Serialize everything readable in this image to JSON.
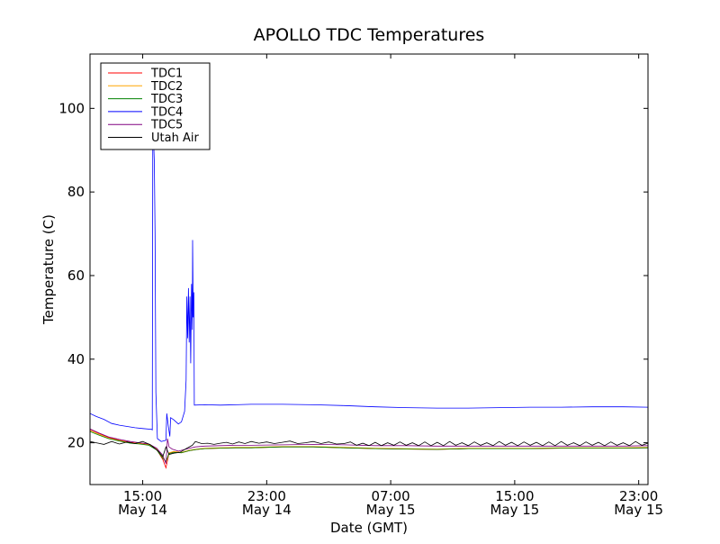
{
  "chart_data": {
    "type": "line",
    "title": "APOLLO TDC Temperatures",
    "xlabel": "Date (GMT)",
    "ylabel": "Temperature (C)",
    "x_unit": "hours since May 14 00:00 GMT",
    "xlim": [
      11.6,
      47.6
    ],
    "ylim": [
      10,
      113
    ],
    "grid": false,
    "legend_position": "top-left",
    "y_ticks": [
      20,
      40,
      60,
      80,
      100
    ],
    "x_ticks": [
      {
        "value": 15,
        "line1": "15:00",
        "line2": "May 14"
      },
      {
        "value": 23,
        "line1": "23:00",
        "line2": "May 14"
      },
      {
        "value": 31,
        "line1": "07:00",
        "line2": "May 15"
      },
      {
        "value": 39,
        "line1": "15:00",
        "line2": "May 15"
      },
      {
        "value": 47,
        "line1": "23:00",
        "line2": "May 15"
      }
    ],
    "series": [
      {
        "name": "TDC1",
        "color": "#ff0000",
        "points": [
          [
            11.6,
            23.2
          ],
          [
            12.2,
            22.2
          ],
          [
            12.8,
            21.3
          ],
          [
            13.5,
            20.6
          ],
          [
            14.2,
            20.1
          ],
          [
            14.8,
            19.9
          ],
          [
            15.4,
            19.6
          ],
          [
            15.9,
            18.4
          ],
          [
            16.3,
            16.0
          ],
          [
            16.5,
            14.0
          ],
          [
            16.7,
            17.5
          ],
          [
            17.0,
            17.8
          ],
          [
            17.5,
            17.6
          ],
          [
            18.0,
            18.1
          ],
          [
            18.5,
            18.4
          ],
          [
            19.0,
            18.6
          ],
          [
            20.0,
            18.7
          ],
          [
            21.0,
            18.8
          ],
          [
            22.0,
            18.8
          ],
          [
            24.0,
            19.0
          ],
          [
            26.0,
            19.0
          ],
          [
            28.0,
            18.8
          ],
          [
            30.0,
            18.6
          ],
          [
            32.0,
            18.5
          ],
          [
            34.0,
            18.4
          ],
          [
            36.0,
            18.6
          ],
          [
            38.0,
            18.6
          ],
          [
            40.0,
            18.6
          ],
          [
            42.0,
            18.7
          ],
          [
            44.0,
            18.7
          ],
          [
            46.0,
            18.7
          ],
          [
            47.6,
            18.8
          ]
        ]
      },
      {
        "name": "TDC2",
        "color": "#ffa500",
        "points": [
          [
            11.6,
            22.9
          ],
          [
            12.2,
            22.0
          ],
          [
            12.8,
            21.1
          ],
          [
            13.5,
            20.5
          ],
          [
            14.2,
            20.0
          ],
          [
            14.8,
            19.8
          ],
          [
            15.4,
            19.5
          ],
          [
            15.9,
            18.5
          ],
          [
            16.3,
            16.5
          ],
          [
            16.5,
            15.2
          ],
          [
            16.7,
            17.6
          ],
          [
            17.0,
            17.9
          ],
          [
            17.5,
            17.7
          ],
          [
            18.0,
            18.2
          ],
          [
            18.5,
            18.5
          ],
          [
            19.0,
            18.7
          ],
          [
            20.0,
            18.8
          ],
          [
            21.0,
            18.9
          ],
          [
            22.0,
            18.9
          ],
          [
            24.0,
            19.1
          ],
          [
            26.0,
            19.1
          ],
          [
            28.0,
            18.9
          ],
          [
            30.0,
            18.7
          ],
          [
            32.0,
            18.6
          ],
          [
            34.0,
            18.5
          ],
          [
            36.0,
            18.7
          ],
          [
            38.0,
            18.7
          ],
          [
            40.0,
            18.7
          ],
          [
            42.0,
            18.8
          ],
          [
            44.0,
            18.8
          ],
          [
            46.0,
            18.8
          ],
          [
            47.6,
            18.9
          ]
        ]
      },
      {
        "name": "TDC3",
        "color": "#008000",
        "points": [
          [
            11.6,
            22.7
          ],
          [
            12.2,
            21.8
          ],
          [
            12.8,
            21.0
          ],
          [
            13.5,
            20.4
          ],
          [
            14.2,
            19.9
          ],
          [
            14.8,
            19.7
          ],
          [
            15.4,
            19.4
          ],
          [
            15.9,
            18.3
          ],
          [
            16.3,
            16.3
          ],
          [
            16.5,
            15.5
          ],
          [
            16.7,
            17.4
          ],
          [
            17.0,
            17.7
          ],
          [
            17.5,
            17.6
          ],
          [
            18.0,
            18.1
          ],
          [
            18.5,
            18.4
          ],
          [
            19.0,
            18.6
          ],
          [
            20.0,
            18.7
          ],
          [
            21.0,
            18.8
          ],
          [
            22.0,
            18.8
          ],
          [
            24.0,
            19.0
          ],
          [
            26.0,
            19.0
          ],
          [
            28.0,
            18.8
          ],
          [
            30.0,
            18.6
          ],
          [
            32.0,
            18.5
          ],
          [
            34.0,
            18.4
          ],
          [
            36.0,
            18.6
          ],
          [
            38.0,
            18.6
          ],
          [
            40.0,
            18.6
          ],
          [
            42.0,
            18.7
          ],
          [
            44.0,
            18.7
          ],
          [
            46.0,
            18.7
          ],
          [
            47.6,
            18.8
          ]
        ]
      },
      {
        "name": "TDC4",
        "color": "#0000ff",
        "points": [
          [
            11.6,
            27.0
          ],
          [
            12.0,
            26.3
          ],
          [
            12.5,
            25.6
          ],
          [
            13.0,
            24.6
          ],
          [
            13.5,
            24.2
          ],
          [
            14.0,
            23.9
          ],
          [
            14.5,
            23.6
          ],
          [
            15.0,
            23.4
          ],
          [
            15.6,
            23.2
          ],
          [
            15.62,
            23.0
          ],
          [
            15.65,
            98.0
          ],
          [
            15.75,
            87.0
          ],
          [
            15.8,
            70.0
          ],
          [
            15.85,
            32.0
          ],
          [
            15.95,
            21.0
          ],
          [
            16.2,
            20.3
          ],
          [
            16.5,
            20.6
          ],
          [
            16.55,
            27.0
          ],
          [
            16.65,
            24.0
          ],
          [
            16.75,
            21.5
          ],
          [
            16.8,
            26.0
          ],
          [
            17.0,
            25.5
          ],
          [
            17.3,
            24.5
          ],
          [
            17.5,
            25.0
          ],
          [
            17.7,
            27.5
          ],
          [
            17.8,
            35.0
          ],
          [
            17.85,
            55.0
          ],
          [
            17.9,
            45.0
          ],
          [
            17.95,
            57.0
          ],
          [
            18.0,
            44.0
          ],
          [
            18.05,
            55.0
          ],
          [
            18.1,
            39.0
          ],
          [
            18.15,
            58.0
          ],
          [
            18.2,
            47.0
          ],
          [
            18.22,
            68.5
          ],
          [
            18.26,
            50.0
          ],
          [
            18.3,
            56.0
          ],
          [
            18.33,
            29.0
          ],
          [
            19.0,
            29.1
          ],
          [
            20.0,
            29.0
          ],
          [
            21.0,
            29.1
          ],
          [
            22.0,
            29.2
          ],
          [
            24.0,
            29.2
          ],
          [
            26.0,
            29.1
          ],
          [
            28.0,
            28.9
          ],
          [
            30.0,
            28.6
          ],
          [
            32.0,
            28.4
          ],
          [
            34.0,
            28.3
          ],
          [
            36.0,
            28.3
          ],
          [
            38.0,
            28.4
          ],
          [
            40.0,
            28.5
          ],
          [
            42.0,
            28.5
          ],
          [
            44.0,
            28.6
          ],
          [
            46.0,
            28.6
          ],
          [
            47.6,
            28.5
          ]
        ]
      },
      {
        "name": "TDC5",
        "color": "#800080",
        "points": [
          [
            11.6,
            23.3
          ],
          [
            12.2,
            22.3
          ],
          [
            12.8,
            21.4
          ],
          [
            13.5,
            20.8
          ],
          [
            14.2,
            20.3
          ],
          [
            14.8,
            20.0
          ],
          [
            15.4,
            19.7
          ],
          [
            15.9,
            18.7
          ],
          [
            16.3,
            17.0
          ],
          [
            16.5,
            15.0
          ],
          [
            16.6,
            21.0
          ],
          [
            16.7,
            19.0
          ],
          [
            16.9,
            18.5
          ],
          [
            17.3,
            18.0
          ],
          [
            17.8,
            18.5
          ],
          [
            18.4,
            19.0
          ],
          [
            19.0,
            19.2
          ],
          [
            20.0,
            19.3
          ],
          [
            21.0,
            19.4
          ],
          [
            22.0,
            19.4
          ],
          [
            24.0,
            19.5
          ],
          [
            26.0,
            19.6
          ],
          [
            28.0,
            19.5
          ],
          [
            30.0,
            19.3
          ],
          [
            32.0,
            19.3
          ],
          [
            34.0,
            19.2
          ],
          [
            36.0,
            19.2
          ],
          [
            38.0,
            19.2
          ],
          [
            40.0,
            19.2
          ],
          [
            42.0,
            19.2
          ],
          [
            44.0,
            19.2
          ],
          [
            46.0,
            19.2
          ],
          [
            47.6,
            19.3
          ]
        ]
      },
      {
        "name": "Utah Air",
        "color": "#000000",
        "points": [
          [
            11.6,
            20.3
          ],
          [
            12.0,
            20.0
          ],
          [
            12.5,
            19.6
          ],
          [
            13.0,
            20.3
          ],
          [
            13.5,
            19.7
          ],
          [
            14.0,
            20.2
          ],
          [
            14.5,
            19.8
          ],
          [
            15.0,
            20.3
          ],
          [
            15.5,
            19.5
          ],
          [
            16.0,
            18.0
          ],
          [
            16.3,
            16.7
          ],
          [
            16.5,
            19.0
          ],
          [
            16.7,
            17.2
          ],
          [
            17.0,
            17.5
          ],
          [
            17.4,
            17.7
          ],
          [
            17.8,
            18.6
          ],
          [
            18.2,
            19.4
          ],
          [
            18.4,
            20.3
          ],
          [
            18.8,
            19.8
          ],
          [
            19.2,
            19.9
          ],
          [
            19.6,
            19.6
          ],
          [
            20.0,
            19.9
          ],
          [
            20.4,
            20.1
          ],
          [
            20.8,
            19.7
          ],
          [
            21.2,
            20.2
          ],
          [
            21.6,
            19.8
          ],
          [
            22.0,
            20.3
          ],
          [
            22.5,
            19.9
          ],
          [
            23.0,
            20.2
          ],
          [
            23.5,
            19.8
          ],
          [
            24.0,
            20.1
          ],
          [
            24.5,
            20.4
          ],
          [
            25.0,
            19.8
          ],
          [
            25.5,
            20.0
          ],
          [
            26.0,
            20.3
          ],
          [
            26.5,
            19.8
          ],
          [
            27.0,
            20.2
          ],
          [
            27.5,
            19.7
          ],
          [
            28.0,
            19.8
          ],
          [
            28.4,
            20.2
          ],
          [
            28.8,
            19.4
          ],
          [
            29.2,
            19.9
          ],
          [
            29.6,
            19.3
          ],
          [
            30.0,
            20.1
          ],
          [
            30.4,
            19.3
          ],
          [
            30.8,
            20.0
          ],
          [
            31.2,
            19.4
          ],
          [
            31.6,
            20.2
          ],
          [
            32.0,
            19.4
          ],
          [
            32.4,
            20.0
          ],
          [
            32.8,
            19.3
          ],
          [
            33.2,
            20.2
          ],
          [
            33.6,
            19.3
          ],
          [
            34.0,
            20.1
          ],
          [
            34.4,
            19.3
          ],
          [
            34.8,
            20.3
          ],
          [
            35.2,
            19.4
          ],
          [
            35.6,
            20.0
          ],
          [
            36.0,
            19.3
          ],
          [
            36.4,
            20.2
          ],
          [
            36.8,
            19.4
          ],
          [
            37.2,
            20.0
          ],
          [
            37.6,
            19.3
          ],
          [
            38.0,
            20.3
          ],
          [
            38.4,
            19.4
          ],
          [
            38.8,
            20.1
          ],
          [
            39.2,
            19.3
          ],
          [
            39.6,
            20.2
          ],
          [
            40.0,
            19.4
          ],
          [
            40.4,
            20.1
          ],
          [
            40.8,
            19.3
          ],
          [
            41.2,
            20.2
          ],
          [
            41.6,
            19.3
          ],
          [
            42.0,
            20.3
          ],
          [
            42.4,
            19.4
          ],
          [
            42.8,
            20.0
          ],
          [
            43.2,
            19.3
          ],
          [
            43.6,
            20.2
          ],
          [
            44.0,
            19.4
          ],
          [
            44.4,
            20.1
          ],
          [
            44.8,
            19.3
          ],
          [
            45.2,
            20.2
          ],
          [
            45.6,
            19.4
          ],
          [
            46.0,
            20.0
          ],
          [
            46.4,
            19.3
          ],
          [
            46.8,
            20.3
          ],
          [
            47.2,
            19.4
          ],
          [
            47.6,
            19.9
          ]
        ]
      }
    ]
  }
}
